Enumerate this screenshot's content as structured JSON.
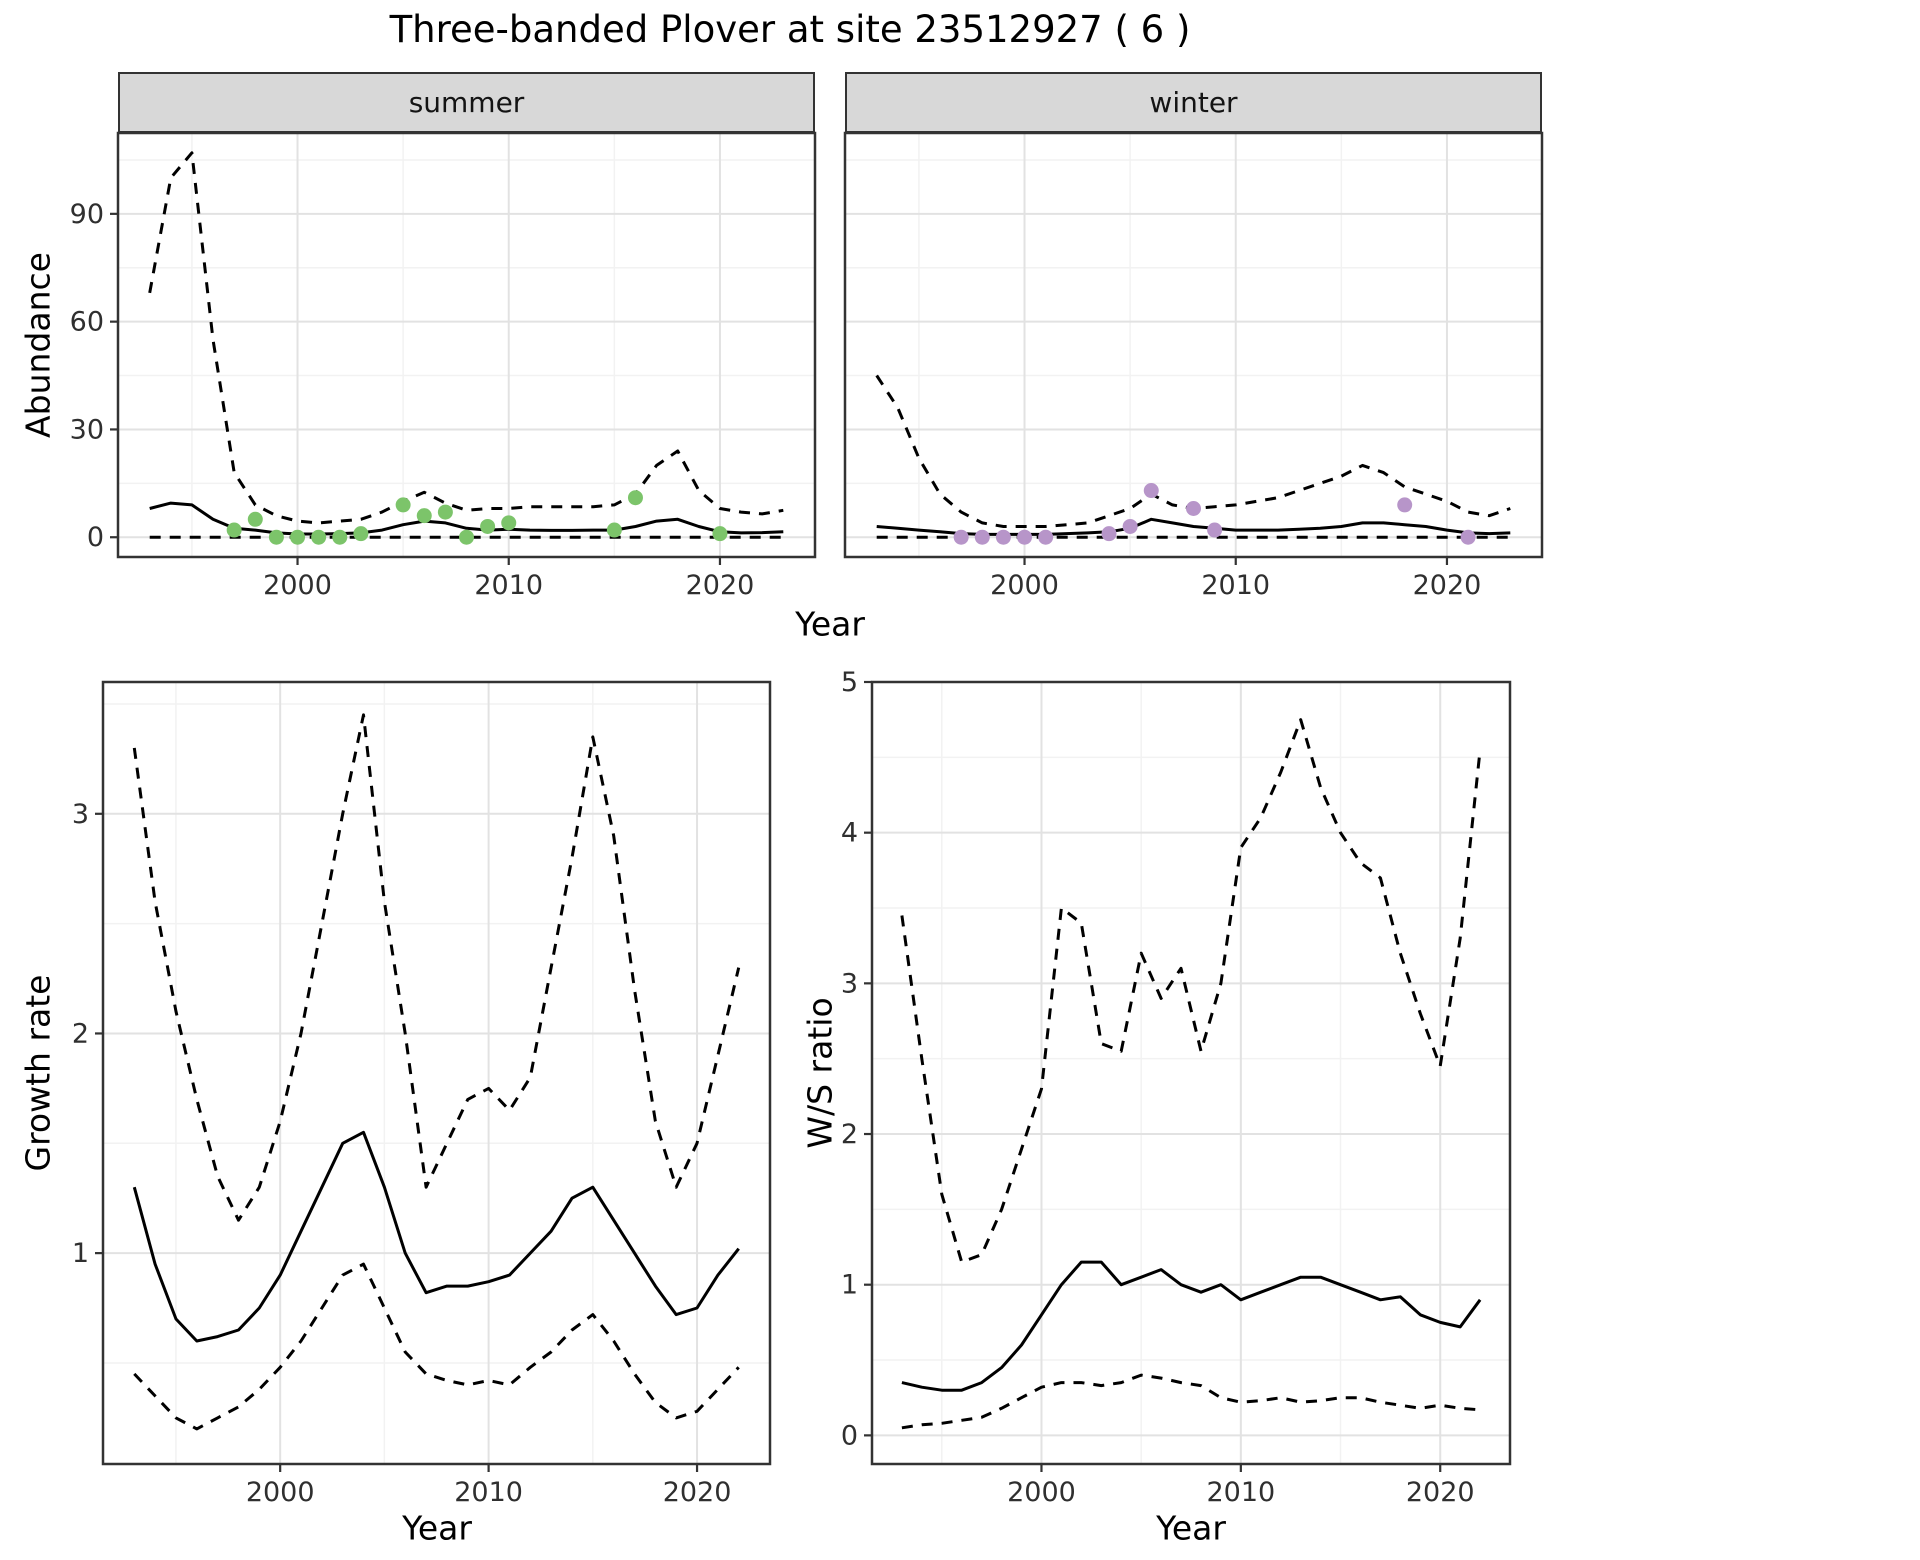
{
  "title": "Three-banded Plover at site 23512927 ( 6 )",
  "facets": [
    {
      "label": "summer"
    },
    {
      "label": "winter"
    }
  ],
  "axis_titles": {
    "y_top": "Abundance",
    "x": "Year",
    "y_growth": "Growth rate",
    "y_ws": "W/S ratio"
  },
  "colors": {
    "panel_bg": "#ffffff",
    "grid_major": "#e2e2e2",
    "grid_minor": "#f2f2f2",
    "line": "#000000",
    "panel_border": "#333333",
    "tick": "#333333",
    "tick_label": "#2f2f2f",
    "strip_bg": "#d8d8d8",
    "summer_points": "#7cc46a",
    "winter_points": "#b795c9"
  },
  "chart_data": [
    {
      "id": "abundance_summer",
      "type": "line",
      "facet_label": "summer",
      "xlabel": "Year",
      "ylabel": "Abundance",
      "xlim": [
        1991.5,
        2024.5
      ],
      "ylim": [
        -5.5,
        112.5
      ],
      "xticks": [
        2000,
        2010,
        2020
      ],
      "yticks": [
        0,
        30,
        60,
        90
      ],
      "grid": true,
      "x": [
        1993,
        1994,
        1995,
        1996,
        1997,
        1998,
        1999,
        2000,
        2001,
        2002,
        2003,
        2004,
        2005,
        2006,
        2007,
        2008,
        2009,
        2010,
        2011,
        2012,
        2013,
        2014,
        2015,
        2016,
        2017,
        2018,
        2019,
        2020,
        2021,
        2022,
        2023
      ],
      "series": [
        {
          "name": "upper_95ci",
          "style": "dashed",
          "values": [
            68,
            100,
            107,
            55,
            18,
            9,
            6,
            4.5,
            4,
            4.5,
            5,
            7,
            10,
            12.5,
            9.5,
            7.5,
            8,
            8,
            8.5,
            8.5,
            8.5,
            8.5,
            9,
            12,
            20,
            24,
            13,
            8,
            7,
            6.5,
            7.5
          ]
        },
        {
          "name": "modelled_mean",
          "style": "solid",
          "values": [
            8,
            9.5,
            9,
            5,
            2.5,
            2,
            1.2,
            0.9,
            0.9,
            1,
            1.2,
            2,
            3.5,
            4.5,
            4,
            2.5,
            2,
            2.2,
            2,
            1.9,
            1.9,
            2,
            2,
            3,
            4.5,
            5,
            3,
            1.5,
            1.2,
            1.3,
            1.5
          ]
        },
        {
          "name": "lower_95ci",
          "style": "dashed",
          "values": [
            0,
            0,
            0,
            0,
            0,
            0,
            0,
            0,
            0,
            0,
            0,
            0,
            0,
            0,
            0,
            0,
            0,
            0,
            0,
            0,
            0,
            0,
            0,
            0,
            0,
            0,
            0,
            0,
            0,
            0,
            0
          ]
        }
      ],
      "points": {
        "name": "observed_counts_summer",
        "color_key": "summer_points",
        "x": [
          1997,
          1998,
          1999,
          2000,
          2001,
          2002,
          2003,
          2005,
          2006,
          2007,
          2008,
          2009,
          2010,
          2015,
          2016,
          2020
        ],
        "y": [
          2,
          5,
          0,
          0,
          0,
          0,
          1,
          9,
          6,
          7,
          0,
          3,
          4,
          2,
          11,
          1
        ]
      }
    },
    {
      "id": "abundance_winter",
      "type": "line",
      "facet_label": "winter",
      "xlabel": "Year",
      "ylabel": "Abundance",
      "xlim": [
        1991.5,
        2024.5
      ],
      "ylim": [
        -5.5,
        112.5
      ],
      "xticks": [
        2000,
        2010,
        2020
      ],
      "yticks": [
        0,
        30,
        60,
        90
      ],
      "grid": true,
      "x": [
        1993,
        1994,
        1995,
        1996,
        1997,
        1998,
        1999,
        2000,
        2001,
        2002,
        2003,
        2004,
        2005,
        2006,
        2007,
        2008,
        2009,
        2010,
        2011,
        2012,
        2013,
        2014,
        2015,
        2016,
        2017,
        2018,
        2019,
        2020,
        2021,
        2022,
        2023
      ],
      "series": [
        {
          "name": "upper_95ci",
          "style": "dashed",
          "values": [
            45,
            36,
            22,
            12,
            7,
            4,
            3,
            3,
            3,
            3.5,
            4,
            6,
            8,
            12,
            9,
            8,
            8.5,
            9,
            10,
            11,
            13,
            15,
            17,
            20,
            18,
            14,
            12,
            10,
            7,
            6,
            8
          ]
        },
        {
          "name": "modelled_mean",
          "style": "solid",
          "values": [
            3,
            2.5,
            2,
            1.5,
            1,
            0.8,
            0.8,
            0.8,
            0.8,
            1,
            1.2,
            1.5,
            2.5,
            5,
            4,
            3,
            2.5,
            2,
            2,
            2,
            2.2,
            2.5,
            3,
            4,
            4,
            3.5,
            3,
            2,
            1.2,
            1,
            1.2
          ]
        },
        {
          "name": "lower_95ci",
          "style": "dashed",
          "values": [
            0,
            0,
            0,
            0,
            0,
            0,
            0,
            0,
            0,
            0,
            0,
            0,
            0,
            0,
            0,
            0,
            0,
            0,
            0,
            0,
            0,
            0,
            0,
            0,
            0,
            0,
            0,
            0,
            0,
            0,
            0
          ]
        }
      ],
      "points": {
        "name": "observed_counts_winter",
        "color_key": "winter_points",
        "x": [
          1997,
          1998,
          1999,
          2000,
          2001,
          2004,
          2005,
          2006,
          2008,
          2009,
          2018,
          2021
        ],
        "y": [
          0,
          0,
          0,
          0,
          0,
          1,
          3,
          13,
          8,
          2,
          9,
          0
        ]
      }
    },
    {
      "id": "growth_rate",
      "type": "line",
      "xlabel": "Year",
      "ylabel": "Growth rate",
      "xlim": [
        1991.5,
        2023.5
      ],
      "ylim": [
        0.04,
        3.6
      ],
      "xticks": [
        2000,
        2010,
        2020
      ],
      "yticks": [
        1,
        2,
        3
      ],
      "grid": true,
      "x": [
        1993,
        1994,
        1995,
        1996,
        1997,
        1998,
        1999,
        2000,
        2001,
        2002,
        2003,
        2004,
        2005,
        2006,
        2007,
        2008,
        2009,
        2010,
        2011,
        2012,
        2013,
        2014,
        2015,
        2016,
        2017,
        2018,
        2019,
        2020,
        2021,
        2022
      ],
      "series": [
        {
          "name": "upper_95ci",
          "style": "dashed",
          "values": [
            3.3,
            2.6,
            2.1,
            1.7,
            1.35,
            1.15,
            1.3,
            1.6,
            2.0,
            2.5,
            3.0,
            3.45,
            2.6,
            2.0,
            1.3,
            1.5,
            1.7,
            1.75,
            1.65,
            1.8,
            2.3,
            2.8,
            3.35,
            2.9,
            2.2,
            1.6,
            1.3,
            1.5,
            1.9,
            2.3
          ]
        },
        {
          "name": "modelled_mean",
          "style": "solid",
          "values": [
            1.3,
            0.95,
            0.7,
            0.6,
            0.62,
            0.65,
            0.75,
            0.9,
            1.1,
            1.3,
            1.5,
            1.55,
            1.3,
            1.0,
            0.82,
            0.85,
            0.85,
            0.87,
            0.9,
            1.0,
            1.1,
            1.25,
            1.3,
            1.15,
            1.0,
            0.85,
            0.72,
            0.75,
            0.9,
            1.02
          ]
        },
        {
          "name": "lower_95ci",
          "style": "dashed",
          "values": [
            0.45,
            0.35,
            0.25,
            0.2,
            0.25,
            0.3,
            0.38,
            0.48,
            0.6,
            0.75,
            0.9,
            0.95,
            0.75,
            0.55,
            0.45,
            0.42,
            0.4,
            0.42,
            0.4,
            0.48,
            0.55,
            0.65,
            0.72,
            0.6,
            0.45,
            0.32,
            0.25,
            0.28,
            0.38,
            0.48
          ]
        }
      ]
    },
    {
      "id": "ws_ratio",
      "type": "line",
      "xlabel": "Year",
      "ylabel": "W/S ratio",
      "xlim": [
        1991.5,
        2023.5
      ],
      "ylim": [
        -0.19,
        5.0
      ],
      "xticks": [
        2000,
        2010,
        2020
      ],
      "yticks": [
        0,
        1,
        2,
        3,
        4,
        5
      ],
      "grid": true,
      "x": [
        1993,
        1994,
        1995,
        1996,
        1997,
        1998,
        1999,
        2000,
        2001,
        2002,
        2003,
        2004,
        2005,
        2006,
        2007,
        2008,
        2009,
        2010,
        2011,
        2012,
        2013,
        2014,
        2015,
        2016,
        2017,
        2018,
        2019,
        2020,
        2021,
        2022
      ],
      "series": [
        {
          "name": "upper_95ci",
          "style": "dashed",
          "values": [
            3.45,
            2.5,
            1.6,
            1.15,
            1.2,
            1.5,
            1.9,
            2.3,
            3.5,
            3.4,
            2.6,
            2.55,
            3.2,
            2.9,
            3.1,
            2.55,
            3.0,
            3.9,
            4.1,
            4.4,
            4.75,
            4.3,
            4.0,
            3.8,
            3.7,
            3.2,
            2.8,
            2.45,
            3.3,
            4.55
          ]
        },
        {
          "name": "modelled_mean",
          "style": "solid",
          "values": [
            0.35,
            0.32,
            0.3,
            0.3,
            0.35,
            0.45,
            0.6,
            0.8,
            1.0,
            1.15,
            1.15,
            1.0,
            1.05,
            1.1,
            1.0,
            0.95,
            1.0,
            0.9,
            0.95,
            1.0,
            1.05,
            1.05,
            1.0,
            0.95,
            0.9,
            0.92,
            0.8,
            0.75,
            0.72,
            0.9
          ]
        },
        {
          "name": "lower_95ci",
          "style": "dashed",
          "values": [
            0.05,
            0.07,
            0.08,
            0.1,
            0.12,
            0.18,
            0.25,
            0.32,
            0.35,
            0.35,
            0.33,
            0.35,
            0.4,
            0.38,
            0.35,
            0.33,
            0.25,
            0.22,
            0.23,
            0.25,
            0.22,
            0.23,
            0.25,
            0.25,
            0.22,
            0.2,
            0.18,
            0.2,
            0.18,
            0.17
          ]
        }
      ]
    }
  ]
}
